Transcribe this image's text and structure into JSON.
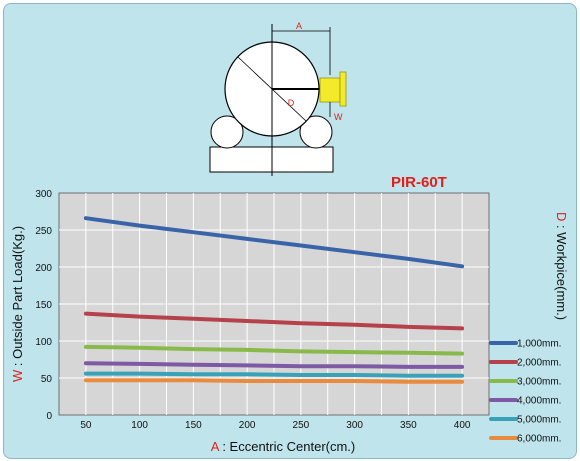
{
  "diagram": {
    "label_a": "A",
    "label_d": "D",
    "label_w": "W"
  },
  "model": "PIR-60T",
  "axes": {
    "y_prefix": "W",
    "y_text": " : Outside Part Load(Kg.)",
    "x_prefix": "A",
    "x_text": " : Eccentric Center(cm.)",
    "right_prefix": "D",
    "right_text": " : Workpice(mm.)"
  },
  "colors": {
    "plot_bg": "#d6d6d6",
    "accent_red": "#e0201a",
    "grid": "#ffffff"
  },
  "chart_data": {
    "type": "line",
    "x": [
      50,
      100,
      150,
      200,
      250,
      300,
      350,
      400
    ],
    "xlim": [
      25,
      425
    ],
    "ylim": [
      0,
      300
    ],
    "x_ticks": [
      "50",
      "100",
      "150",
      "200",
      "250",
      "300",
      "350",
      "400"
    ],
    "y_ticks": [
      "0",
      "50",
      "100",
      "150",
      "200",
      "250",
      "300"
    ],
    "grid": true,
    "legend_position": "right",
    "series": [
      {
        "name": "1,000mm.",
        "color": "#3a64a8",
        "values": [
          266,
          256,
          247,
          238,
          229,
          220,
          211,
          201
        ]
      },
      {
        "name": "2,000mm.",
        "color": "#b5414b",
        "values": [
          137,
          133,
          130,
          127,
          124,
          122,
          119,
          117
        ]
      },
      {
        "name": "3,000mm.",
        "color": "#89b94a",
        "values": [
          92,
          91,
          89,
          88,
          86,
          85,
          84,
          83
        ]
      },
      {
        "name": "4,000mm.",
        "color": "#7d5aa3",
        "values": [
          70,
          69,
          68,
          67,
          66,
          66,
          65,
          65
        ]
      },
      {
        "name": "5,000mm.",
        "color": "#3aa2b8",
        "values": [
          56,
          56,
          55,
          55,
          54,
          54,
          53,
          53
        ]
      },
      {
        "name": "6,000mm.",
        "color": "#e98b3e",
        "values": [
          47,
          47,
          47,
          46,
          46,
          46,
          45,
          45
        ]
      }
    ]
  }
}
